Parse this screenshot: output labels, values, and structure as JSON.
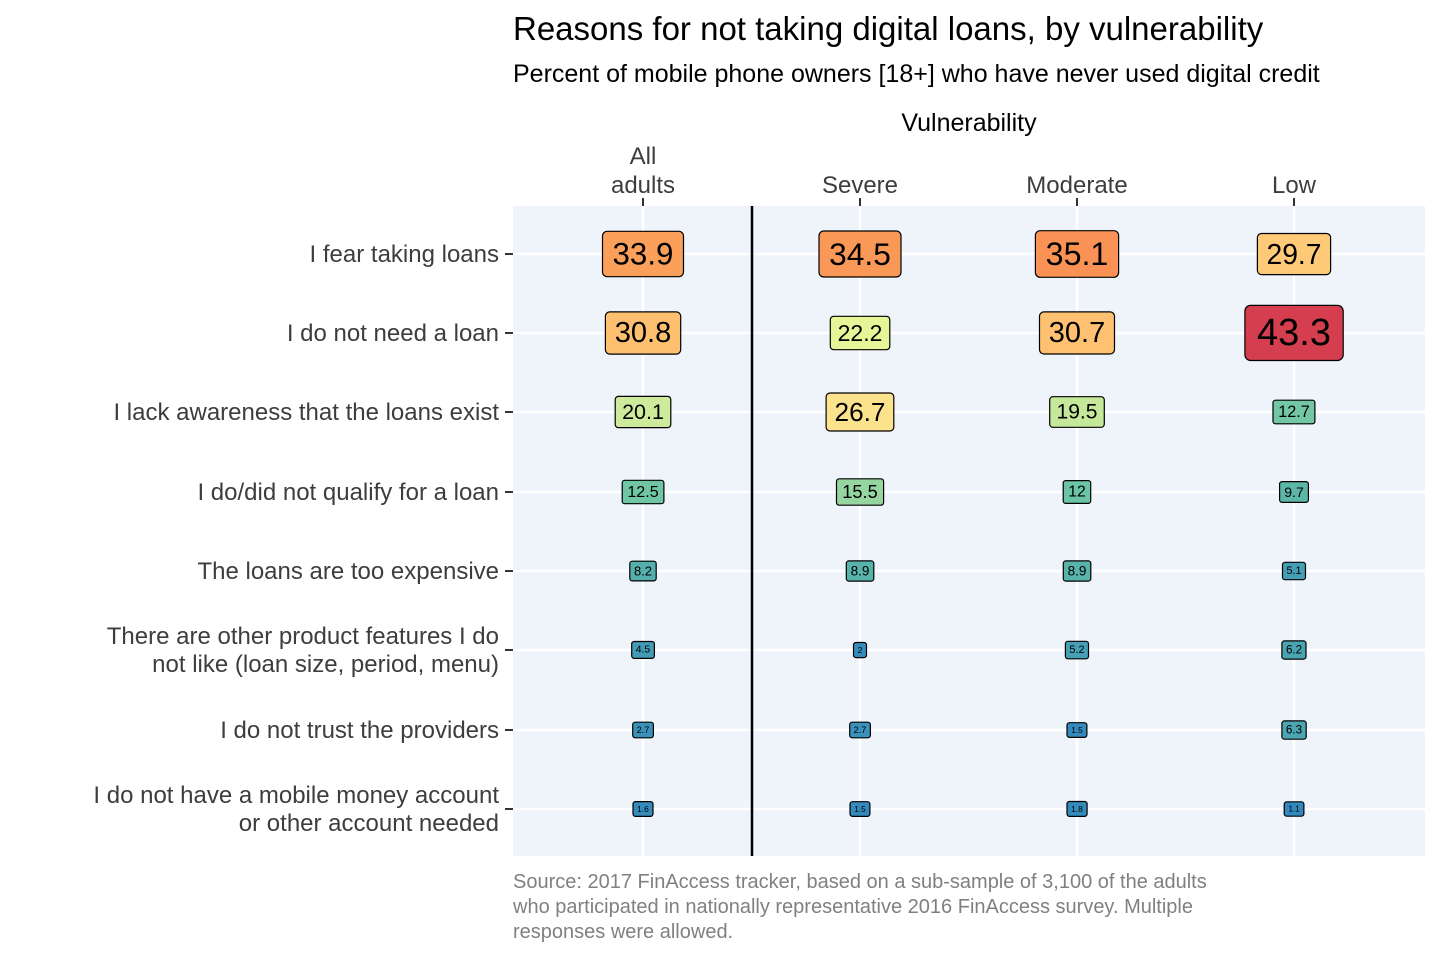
{
  "chart_data": {
    "type": "heatmap",
    "title": "Reasons for not taking digital loans, by vulnerability",
    "subtitle": "Percent of mobile phone owners [18+] who have never used digital credit",
    "xlabel": "Vulnerability",
    "ylabel": "",
    "columns": [
      {
        "label_lines": [
          "All",
          "adults"
        ]
      },
      {
        "label_lines": [
          "Severe"
        ]
      },
      {
        "label_lines": [
          "Moderate"
        ]
      },
      {
        "label_lines": [
          "Low"
        ]
      }
    ],
    "rows": [
      {
        "label_lines": [
          "I fear taking loans"
        ],
        "values": [
          33.9,
          34.5,
          35.1,
          29.7
        ]
      },
      {
        "label_lines": [
          "I do not need a loan"
        ],
        "values": [
          30.8,
          22.2,
          30.7,
          43.3
        ]
      },
      {
        "label_lines": [
          "I lack awareness that the loans exist"
        ],
        "values": [
          20.1,
          26.7,
          19.5,
          12.7
        ]
      },
      {
        "label_lines": [
          "I do/did not qualify for a loan"
        ],
        "values": [
          12.5,
          15.5,
          12,
          9.7
        ]
      },
      {
        "label_lines": [
          "The loans are too expensive"
        ],
        "values": [
          8.2,
          8.9,
          8.9,
          5.1
        ]
      },
      {
        "label_lines": [
          "There are other product features I do",
          "not like (loan size, period, menu)"
        ],
        "values": [
          4.5,
          2,
          5.2,
          6.2
        ]
      },
      {
        "label_lines": [
          "I do not trust the providers"
        ],
        "values": [
          2.7,
          2.7,
          1.5,
          6.3
        ]
      },
      {
        "label_lines": [
          "I do not have a mobile money account",
          "or other account needed"
        ],
        "values": [
          1.6,
          1.5,
          1.8,
          1.1
        ]
      }
    ],
    "color_scale": "Spectral (reversed): high values red/orange, low values blue",
    "grid": true,
    "divider_after_first_column": true,
    "caption_lines": [
      "Source: 2017 FinAccess tracker, based on a sub-sample of 3,100 of the adults",
      "who participated in nationally representative 2016 FinAccess survey. Multiple",
      "responses were allowed."
    ]
  },
  "colors": {
    "panel_background": "#eff3fa",
    "gridline": "#ffffff",
    "divider": "#000000",
    "label_border": "#000000",
    "text": "#000000",
    "axis_text": "#3d3d3d",
    "caption_text": "#808080"
  }
}
